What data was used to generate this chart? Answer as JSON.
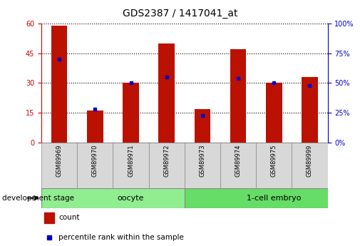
{
  "title": "GDS2387 / 1417041_at",
  "samples": [
    "GSM89969",
    "GSM89970",
    "GSM89971",
    "GSM89972",
    "GSM89973",
    "GSM89974",
    "GSM89975",
    "GSM89999"
  ],
  "counts": [
    59,
    16,
    30,
    50,
    17,
    47,
    30,
    33
  ],
  "percentiles": [
    70,
    28,
    50,
    55,
    23,
    54,
    50,
    48
  ],
  "groups": [
    {
      "label": "oocyte",
      "start": 0,
      "end": 4,
      "color": "#90EE90"
    },
    {
      "label": "1-cell embryo",
      "start": 4,
      "end": 8,
      "color": "#66DD66"
    }
  ],
  "group_label": "development stage",
  "left_ylim": [
    0,
    60
  ],
  "right_ylim": [
    0,
    100
  ],
  "left_yticks": [
    0,
    15,
    30,
    45,
    60
  ],
  "right_yticks": [
    0,
    25,
    50,
    75,
    100
  ],
  "bar_color": "#BB1100",
  "dot_color": "#0000CC",
  "bar_width": 0.45,
  "legend_count_label": "count",
  "legend_pct_label": "percentile rank within the sample",
  "title_fontsize": 10,
  "tick_fontsize": 7,
  "axis_label_color_left": "#CC0000",
  "axis_label_color_right": "#0000CC",
  "background_color": "#ffffff",
  "plot_bg_color": "#ffffff",
  "sample_cell_color": "#d8d8d8",
  "sample_cell_edge": "#888888"
}
